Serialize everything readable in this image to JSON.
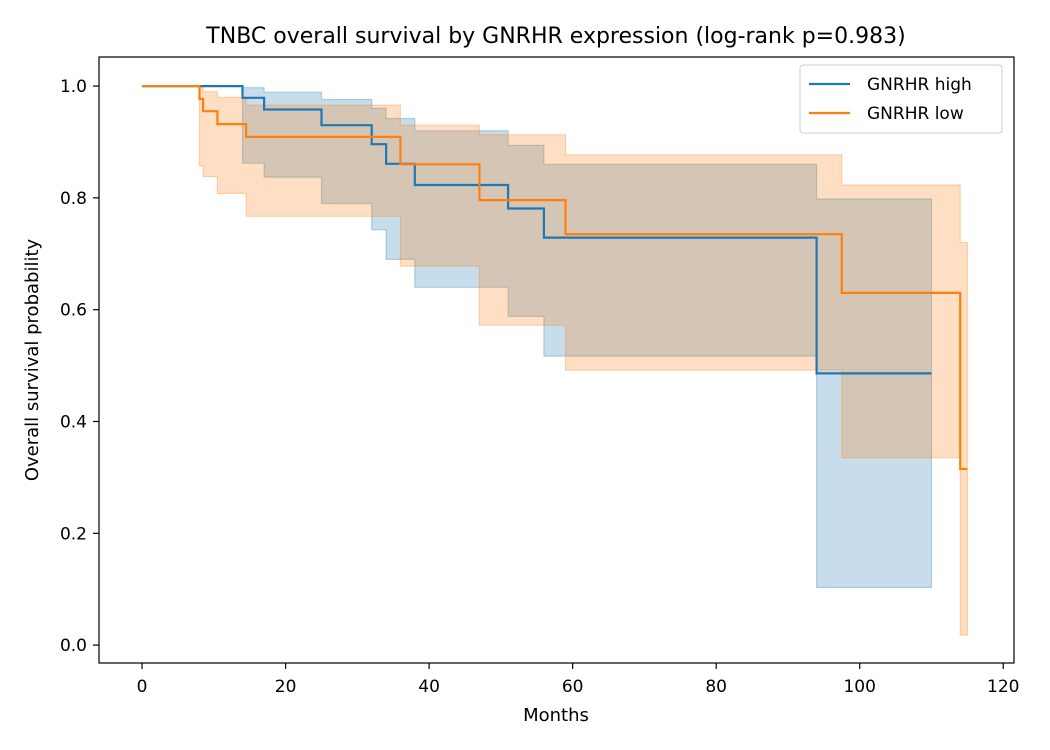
{
  "chart_data": {
    "type": "line",
    "title": "TNBC overall survival by GNRHR expression (log-rank p=0.983)",
    "xlabel": "Months",
    "ylabel": "Overall survival probability",
    "xlim": [
      -6,
      121.5
    ],
    "ylim": [
      -0.032,
      1.052
    ],
    "xticks": [
      0,
      20,
      40,
      60,
      80,
      100,
      120
    ],
    "yticks": [
      0.0,
      0.2,
      0.4,
      0.6,
      0.8,
      1.0
    ],
    "xtick_labels": [
      "0",
      "20",
      "40",
      "60",
      "80",
      "100",
      "120"
    ],
    "ytick_labels": [
      "0.0",
      "0.2",
      "0.4",
      "0.6",
      "0.8",
      "1.0"
    ],
    "grid": false,
    "legend_position": "top-right",
    "step": true,
    "confidence_bands": true,
    "series": [
      {
        "name": "GNRHR high",
        "color": "#1f77b4",
        "x": [
          0,
          14,
          17,
          25,
          32,
          34,
          38,
          51,
          56,
          94,
          110
        ],
        "y": [
          1.0,
          0.979,
          0.958,
          0.93,
          0.896,
          0.861,
          0.823,
          0.781,
          0.729,
          0.486,
          0.486
        ],
        "ci_lower": [
          1.0,
          0.862,
          0.837,
          0.79,
          0.743,
          0.69,
          0.64,
          0.588,
          0.517,
          0.103,
          0.103
        ],
        "ci_upper": [
          1.0,
          0.997,
          0.989,
          0.976,
          0.96,
          0.942,
          0.92,
          0.894,
          0.86,
          0.798,
          0.798
        ]
      },
      {
        "name": "GNRHR low",
        "color": "#ff7f0e",
        "x": [
          0,
          8,
          8.5,
          10.5,
          14.5,
          36,
          47,
          59,
          97.5,
          114,
          115
        ],
        "y": [
          1.0,
          0.977,
          0.955,
          0.932,
          0.909,
          0.86,
          0.796,
          0.735,
          0.63,
          0.315,
          0.315
        ],
        "ci_lower": [
          1.0,
          0.857,
          0.838,
          0.808,
          0.767,
          0.678,
          0.572,
          0.492,
          0.335,
          0.018,
          0.018
        ],
        "ci_upper": [
          1.0,
          0.997,
          0.99,
          0.98,
          0.966,
          0.93,
          0.913,
          0.877,
          0.823,
          0.72,
          0.72
        ]
      }
    ]
  }
}
